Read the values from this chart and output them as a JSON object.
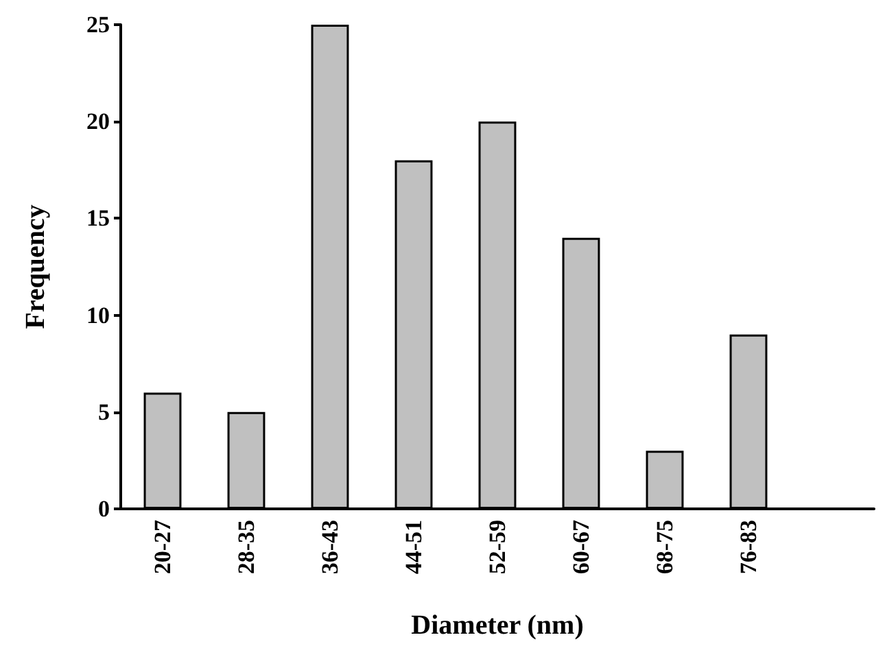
{
  "chart_data": {
    "type": "bar",
    "xlabel": "Diameter (nm)",
    "ylabel": "Frequency",
    "categories": [
      "20-27",
      "28-35",
      "36-43",
      "44-51",
      "52-59",
      "60-67",
      "68-75",
      "76-83",
      null
    ],
    "values": [
      6,
      5,
      25,
      18,
      20,
      14,
      3,
      9,
      null
    ],
    "color": "#c0c0c0",
    "ylim": [
      0,
      25
    ],
    "yticks": [
      0,
      5,
      10,
      15,
      20,
      25
    ]
  }
}
